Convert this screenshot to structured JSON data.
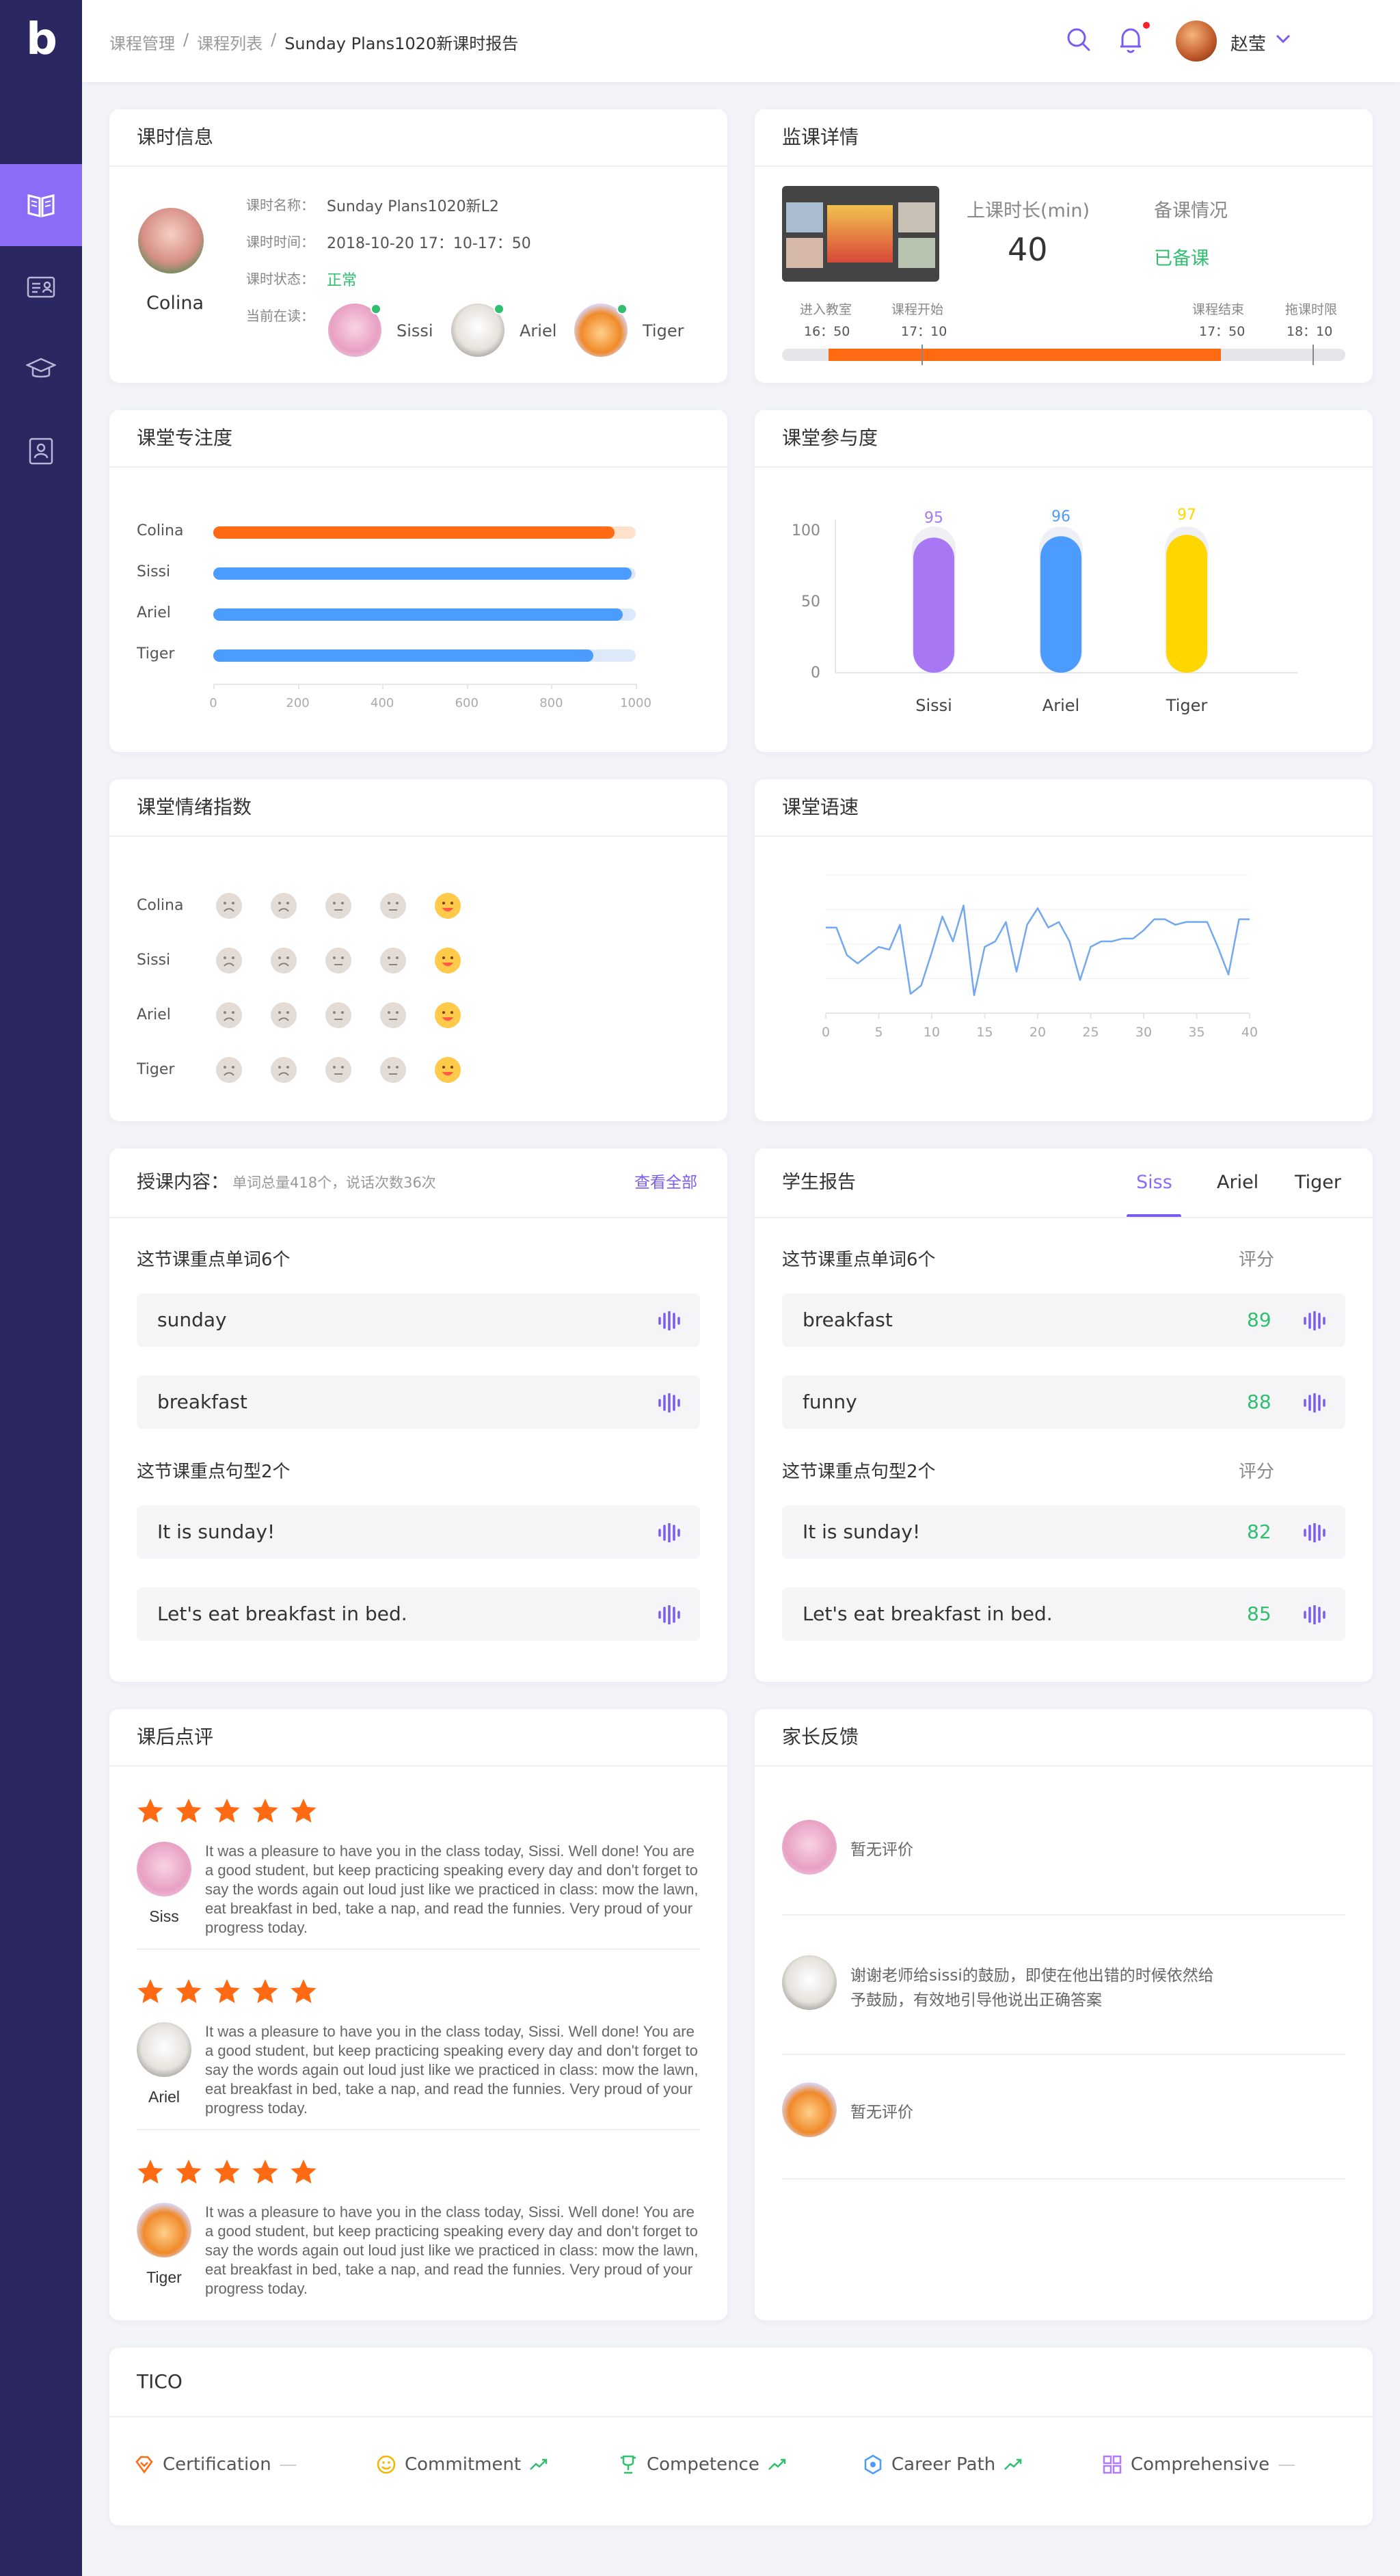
{
  "app": {
    "logo": "b"
  },
  "breadcrumb": [
    "课程管理",
    "课程列表",
    "Sunday Plans1020新课时报告"
  ],
  "header": {
    "user": "赵莹"
  },
  "lesson": {
    "title": "课时信息",
    "teacher": "Colina",
    "name_label": "课时名称：",
    "name": "Sunday Plans1020新L2",
    "time_label": "课时时间：",
    "time": "2018-10-20 17：10-17：50",
    "status_label": "课时状态：",
    "status": "正常",
    "reading_label": "当前在读：",
    "students": [
      "Sissi",
      "Ariel",
      "Tiger"
    ]
  },
  "monitor": {
    "title": "监课详情",
    "duration_label": "上课时长(min)",
    "duration": "40",
    "prep_label": "备课情况",
    "prep": "已备课",
    "timeline": [
      {
        "label": "进入教室",
        "time": "16：50"
      },
      {
        "label": "课程开始",
        "time": "17：10"
      },
      {
        "label": "课程结束",
        "time": "17：50"
      },
      {
        "label": "拖课时限",
        "time": "18：10"
      }
    ]
  },
  "focus": {
    "title": "课堂专注度",
    "chart_data": {
      "type": "bar",
      "orientation": "horizontal",
      "categories": [
        "Colina",
        "Sissi",
        "Ariel",
        "Tiger"
      ],
      "values": [
        950,
        990,
        970,
        900
      ],
      "xlim": [
        0,
        1000
      ],
      "xticks": [
        "0",
        "200",
        "400",
        "600",
        "800",
        "1000"
      ],
      "colors": {
        "teacher": "#ff6a13",
        "student": "#4c9bff",
        "track_teacher": "#ffe1cc",
        "track_student": "#dbe9fb"
      }
    }
  },
  "participation": {
    "title": "课堂参与度",
    "chart_data": {
      "type": "bar",
      "categories": [
        "Sissi",
        "Ariel",
        "Tiger"
      ],
      "values": [
        95,
        96,
        97
      ],
      "ylim": [
        0,
        100
      ],
      "yticks": [
        "0",
        "50",
        "100"
      ],
      "colors": [
        "#a877f4",
        "#4c9bff",
        "#ffd600"
      ]
    }
  },
  "emotion": {
    "title": "课堂情绪指数",
    "rows": [
      "Colina",
      "Sissi",
      "Ariel",
      "Tiger"
    ]
  },
  "speed": {
    "title": "课堂语速",
    "chart_data": {
      "type": "line",
      "x": [
        0,
        1,
        2,
        3,
        4,
        5,
        6,
        7,
        8,
        9,
        10,
        11,
        12,
        13,
        14,
        15,
        16,
        17,
        18,
        19,
        20,
        21,
        22,
        23,
        24,
        25,
        26,
        27,
        28,
        29,
        30,
        31,
        32,
        33,
        34,
        35,
        36,
        37,
        38,
        39,
        40
      ],
      "y": [
        62,
        62,
        42,
        36,
        42,
        48,
        46,
        64,
        14,
        20,
        44,
        70,
        52,
        78,
        13,
        48,
        52,
        66,
        30,
        64,
        76,
        62,
        66,
        52,
        24,
        48,
        52,
        52,
        54,
        54,
        60,
        68,
        68,
        64,
        66,
        66,
        66,
        48,
        28,
        68,
        68
      ],
      "xlim": [
        0,
        40
      ],
      "xticks": [
        "0",
        "5",
        "10",
        "15",
        "20",
        "25",
        "30",
        "35",
        "40"
      ],
      "color": "#72a8f0"
    }
  },
  "content": {
    "title": "授课内容：",
    "meta": "单词总量418个，说话次数36次",
    "view_all": "查看全部",
    "words_title": "这节课重点单词6个",
    "words": [
      "sunday",
      "breakfast"
    ],
    "sentences_title": "这节课重点句型2个",
    "sentences": [
      "It is sunday!",
      "Let's eat breakfast in bed."
    ]
  },
  "report": {
    "title": "学生报告",
    "tabs": [
      "Siss",
      "Ariel",
      "Tiger"
    ],
    "words_title": "这节课重点单词6个",
    "score_label": "评分",
    "words": [
      {
        "text": "breakfast",
        "score": "89"
      },
      {
        "text": "funny",
        "score": "88"
      }
    ],
    "sentences_title": "这节课重点句型2个",
    "sentences": [
      {
        "text": "It is sunday!",
        "score": "82"
      },
      {
        "text": "Let's eat breakfast in bed.",
        "score": "85"
      }
    ]
  },
  "review": {
    "title": "课后点评",
    "items": [
      {
        "name": "Siss",
        "rating": 5,
        "text": "It was a pleasure to have you in the class today, Sissi. Well done! You are a good student, but keep practicing speaking every day and don't forget to say the words again out loud just like we practiced in class: mow the lawn, eat breakfast in bed, take a nap, and read the funnies. Very proud of your progress today."
      },
      {
        "name": "Ariel",
        "rating": 5,
        "text": "It was a pleasure to have you in the class today, Sissi. Well done! You are a good student, but keep practicing speaking every day and don't forget to say the words again out loud just like we practiced in class: mow the lawn, eat breakfast in bed, take a nap, and read the funnies. Very proud of your progress today."
      },
      {
        "name": "Tiger",
        "rating": 5,
        "text": "It was a pleasure to have you in the class today, Sissi. Well done! You are a good student, but keep practicing speaking every day and don't forget to say the words again out loud just like we practiced in class: mow the lawn, eat breakfast in bed, take a nap, and read the funnies. Very proud of your progress today."
      }
    ]
  },
  "feedback": {
    "title": "家长反馈",
    "items": [
      {
        "text": "暂无评价"
      },
      {
        "text1": "谢谢老师给sissi的鼓励，即使在他出错的时候依然给",
        "text2": "予鼓励，有效地引导他说出正确答案"
      },
      {
        "text": "暂无评价"
      }
    ]
  },
  "tico": {
    "title": "TICO",
    "items": [
      "Certification",
      "Commitment",
      "Competence",
      "Career Path",
      "Comprehensive"
    ]
  }
}
